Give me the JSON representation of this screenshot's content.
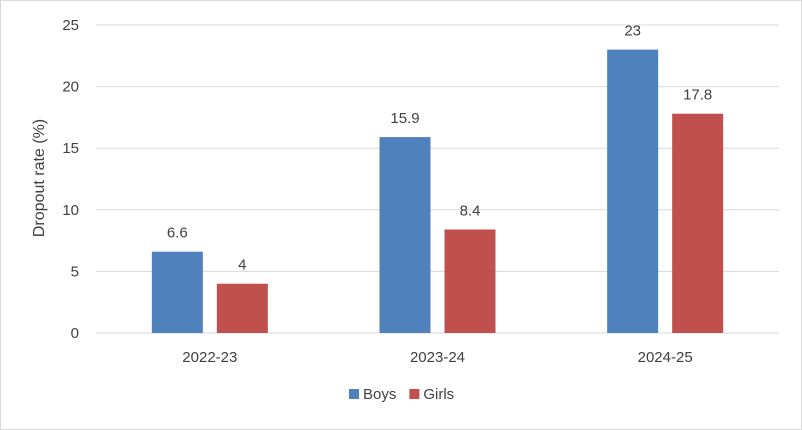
{
  "chart_data": {
    "type": "bar",
    "title": "",
    "xlabel": "",
    "ylabel": "Dropout rate (%)",
    "ylim": [
      0,
      25
    ],
    "yticks": [
      0,
      5,
      10,
      15,
      20,
      25
    ],
    "grid": true,
    "legend_position": "bottom",
    "categories": [
      "2022-23",
      "2023-24",
      "2024-25"
    ],
    "series": [
      {
        "name": "Boys",
        "color": "#4f81bd",
        "values": [
          6.6,
          15.9,
          23
        ]
      },
      {
        "name": "Girls",
        "color": "#c0504d",
        "values": [
          4,
          8.4,
          17.8
        ]
      }
    ]
  }
}
